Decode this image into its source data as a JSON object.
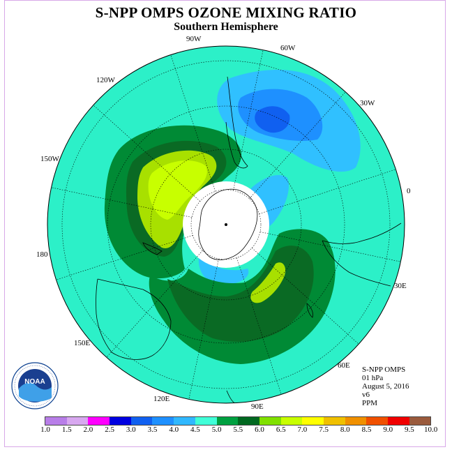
{
  "header": {
    "title": "S-NPP OMPS OZONE MIXING RATIO",
    "subtitle": "Southern Hemisphere"
  },
  "longitude_labels": [
    "90W",
    "60W",
    "30W",
    "0",
    "30E",
    "60E",
    "90E",
    "120E",
    "150E",
    "180",
    "150W",
    "120W"
  ],
  "info": {
    "instrument": "S-NPP OMPS",
    "level": "01 hPa",
    "date": "August 5, 2016",
    "version": "v6",
    "units": "PPM"
  },
  "logo": {
    "text": "NOAA",
    "ring_text": "NATIONAL OCEANIC AND ATMOSPHERIC ADMINISTRATION · U.S. DEPARTMENT OF COMMERCE"
  },
  "colorbar": {
    "colors": [
      "#b87ee8",
      "#d8a8f0",
      "#ff00ff",
      "#0000e0",
      "#1060f0",
      "#1e90ff",
      "#30b8ff",
      "#40ffd8",
      "#00a040",
      "#006820",
      "#80e000",
      "#c8ff00",
      "#ffff00",
      "#f0c000",
      "#f09000",
      "#f05000",
      "#f00000",
      "#9a5a3c"
    ],
    "ticks": [
      "1.0",
      "1.5",
      "2.0",
      "2.5",
      "3.0",
      "3.5",
      "4.0",
      "4.5",
      "5.0",
      "5.5",
      "6.0",
      "6.5",
      "7.0",
      "7.5",
      "8.0",
      "8.5",
      "9.0",
      "9.5",
      "10.0"
    ]
  },
  "map_colors": {
    "background": "#2cf0c8",
    "light_blue": "#30c0ff",
    "medium_blue": "#1e90ff",
    "dark_blue": "#1060f0",
    "dark_green": "#0a7a2a",
    "medium_green": "#008a35",
    "yellow_green": "#a8e000",
    "lime": "#c8ff00",
    "pole_mask": "#ffffff"
  }
}
